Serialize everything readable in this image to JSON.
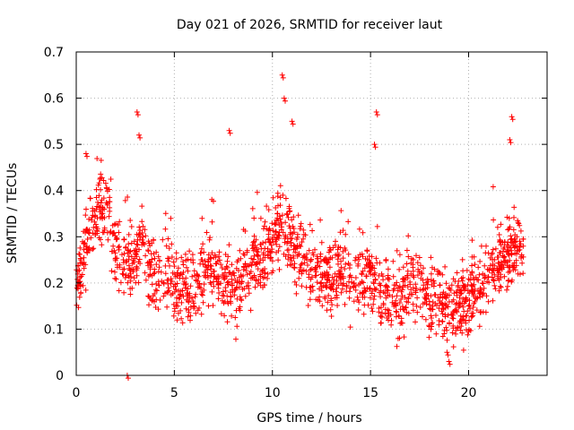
{
  "chart_data": {
    "type": "scatter",
    "title": "Day 021 of 2026, SRMTID for receiver laut",
    "xlabel": "GPS time / hours",
    "ylabel": "SRMTID / TECUs",
    "xlim": [
      0,
      24
    ],
    "ylim": [
      0,
      0.7
    ],
    "xticks": [
      0,
      5,
      10,
      15,
      20
    ],
    "yticks": [
      0,
      0.1,
      0.2,
      0.3,
      0.4,
      0.5,
      0.6,
      0.7
    ],
    "xtick_labels": [
      "0",
      "5",
      "10",
      "15",
      "20"
    ],
    "ytick_labels": [
      "0",
      "0.1",
      "0.2",
      "0.3",
      "0.4",
      "0.5",
      "0.6",
      "0.7"
    ],
    "grid": true,
    "marker": "+",
    "series_color": "#ff0000",
    "x_coverage": [
      0,
      22.8
    ],
    "trend": {
      "x": [
        0.0,
        0.3,
        0.6,
        1.0,
        1.3,
        1.6,
        1.9,
        2.2,
        2.5,
        2.8,
        3.1,
        3.4,
        3.7,
        4.0,
        4.5,
        5.0,
        5.5,
        6.0,
        6.5,
        7.0,
        7.5,
        8.0,
        8.5,
        9.0,
        9.5,
        10.0,
        10.5,
        11.0,
        11.5,
        12.0,
        12.5,
        13.0,
        13.5,
        14.0,
        14.5,
        15.0,
        15.5,
        16.0,
        16.5,
        17.0,
        17.5,
        18.0,
        18.5,
        19.0,
        19.5,
        20.0,
        20.5,
        21.0,
        21.5,
        22.0,
        22.4,
        22.8
      ],
      "y": [
        0.19,
        0.24,
        0.3,
        0.34,
        0.37,
        0.38,
        0.27,
        0.26,
        0.24,
        0.22,
        0.26,
        0.3,
        0.24,
        0.21,
        0.22,
        0.2,
        0.19,
        0.19,
        0.22,
        0.23,
        0.2,
        0.18,
        0.21,
        0.25,
        0.25,
        0.29,
        0.34,
        0.28,
        0.25,
        0.23,
        0.21,
        0.22,
        0.23,
        0.22,
        0.2,
        0.22,
        0.18,
        0.17,
        0.16,
        0.19,
        0.2,
        0.18,
        0.16,
        0.13,
        0.15,
        0.16,
        0.19,
        0.22,
        0.24,
        0.26,
        0.28,
        0.26
      ]
    },
    "spread": 0.055,
    "n_points": 1800,
    "notable_points": [
      {
        "x": 0.5,
        "y": 0.48
      },
      {
        "x": 3.1,
        "y": 0.57
      },
      {
        "x": 3.2,
        "y": 0.52
      },
      {
        "x": 7.8,
        "y": 0.53
      },
      {
        "x": 10.5,
        "y": 0.65
      },
      {
        "x": 10.6,
        "y": 0.6
      },
      {
        "x": 11.0,
        "y": 0.55
      },
      {
        "x": 15.3,
        "y": 0.57
      },
      {
        "x": 15.2,
        "y": 0.5
      },
      {
        "x": 22.2,
        "y": 0.56
      },
      {
        "x": 22.1,
        "y": 0.51
      },
      {
        "x": 2.6,
        "y": 0.0
      },
      {
        "x": 19.0,
        "y": 0.03
      },
      {
        "x": 18.9,
        "y": 0.05
      }
    ]
  }
}
